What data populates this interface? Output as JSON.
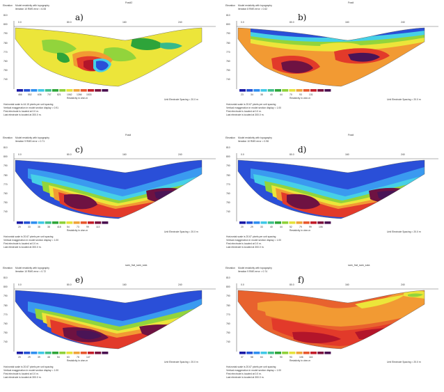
{
  "panels": [
    {
      "id": "a",
      "label": "a)",
      "title": "Fradi2",
      "elev_label": "Elevation",
      "header1": "Model resistivity with topography",
      "header2": "Iteration 10 RMS error = 6.08",
      "elev_ticks": [
        "810",
        "800",
        "790",
        "780",
        "770",
        "760",
        "750",
        "740"
      ],
      "dist_ticks": [
        "0.0",
        "80.0",
        "160",
        "240"
      ],
      "legend_values": [
        "466",
        "552",
        "636",
        "707",
        "821",
        "1062",
        "1266",
        "1533"
      ],
      "legend_title": "Resistivity in ohm.m",
      "electrode_spacing": "Unit Electrode Spacing = 20.0 m",
      "footer": [
        "Horizontal scale is 44.15 pixels per unit spacing",
        "Vertical exaggeration in model section display = 0.91",
        "First electrode is located at 0.0 m.",
        "Last electrode is located at 300.0 m."
      ]
    },
    {
      "id": "b",
      "label": "b)",
      "title": "Fradi",
      "elev_label": "Elevation",
      "header1": "Model resistivity with topography",
      "header2": "Iteration 8 RMS error = 0.62",
      "elev_ticks": [
        "810",
        "800",
        "790",
        "780",
        "770",
        "760",
        "750",
        "740"
      ],
      "dist_ticks": [
        "0.0",
        "80.0",
        "160",
        "240"
      ],
      "legend_values": [
        "23",
        "34",
        "38",
        "40",
        "44",
        "70",
        "93",
        "131"
      ],
      "legend_title": "Resistivity in ohm.m",
      "electrode_spacing": "Unit Electrode Spacing = 20.0 m",
      "footer": [
        "Horizontal scale is 20.67 pixels per unit spacing",
        "Vertical exaggeration in model section display = 1.00",
        "First electrode is located at 0.0 m.",
        "Last electrode is located at 300.0 m."
      ]
    },
    {
      "id": "c",
      "label": "c)",
      "title": "Fradi",
      "elev_label": "Elevation",
      "header1": "Model resistivity with topography",
      "header2": "Iteration 9 RMS error = 0.71",
      "elev_ticks": [
        "810",
        "800",
        "790",
        "780",
        "770",
        "760",
        "750",
        "740"
      ],
      "dist_ticks": [
        "0.0",
        "80.0",
        "160",
        "240"
      ],
      "legend_values": [
        "20",
        "33",
        "38",
        "38",
        "418",
        "54",
        "73",
        "99",
        "113"
      ],
      "legend_title": "Resistivity in ohm.m",
      "electrode_spacing": "Unit Electrode Spacing = 20.0 m",
      "footer": [
        "Horizontal scale is 20.67 pixels per unit spacing",
        "Vertical exaggeration in model section display = 1.00",
        "First electrode is located at 0.0 m.",
        "Last electrode is located at 300.0 m."
      ]
    },
    {
      "id": "d",
      "label": "d)",
      "title": "Fradi",
      "elev_label": "Elevation",
      "header1": "Model resistivity with topography",
      "header2": "Iteration 10 RMS error = 0.98",
      "elev_ticks": [
        "810",
        "800",
        "790",
        "780",
        "770",
        "760",
        "750",
        "740"
      ],
      "dist_ticks": [
        "0.0",
        "80.0",
        "160",
        "240"
      ],
      "legend_values": [
        "20",
        "29",
        "33",
        "40",
        "44",
        "52",
        "79",
        "99",
        "106"
      ],
      "legend_title": "Resistivity in ohm.m",
      "electrode_spacing": "Unit Electrode Spacing = 20.0 m",
      "footer": [
        "Horizontal scale is 20.67 pixels per unit spacing",
        "Vertical exaggeration in model section display = 1.00",
        "First electrode is located at 0.0 m.",
        "Last electrode is located at 300.0 m."
      ]
    },
    {
      "id": "e",
      "label": "e)",
      "title": "sam_frat_sam_sola",
      "elev_label": "Elevation",
      "header1": "Model resistivity with topography",
      "header2": "Iteration 10 RMS error = 0.72",
      "elev_ticks": [
        "810",
        "800",
        "790",
        "780",
        "770",
        "760",
        "750",
        "740"
      ],
      "dist_ticks": [
        "0.0",
        "80.0",
        "160",
        "240"
      ],
      "legend_values": [
        "20",
        "29",
        "39",
        "48",
        "54",
        "63",
        "78",
        "147"
      ],
      "legend_title": "Resistivity in ohm.m",
      "electrode_spacing": "Unit Electrode Spacing = 20.0 m",
      "footer": [
        "Horizontal scale is 20.67 pixels per unit spacing",
        "Vertical exaggeration in model section display = 1.00",
        "First electrode is located at 0.0 m.",
        "Last electrode is located at 300.0 m."
      ]
    },
    {
      "id": "f",
      "label": "f)",
      "title": "sam_frat_sam_sola",
      "elev_label": "Elevation",
      "header1": "Model resistivity with topography",
      "header2": "Iteration 9 RMS error = 0.74",
      "elev_ticks": [
        "810",
        "800",
        "790",
        "780",
        "770",
        "760",
        "750",
        "740"
      ],
      "dist_ticks": [
        "0.0",
        "80.0",
        "160",
        "240"
      ],
      "legend_values": [
        "37",
        "58",
        "64",
        "81",
        "90",
        "93",
        "106",
        "116"
      ],
      "legend_title": "Resistivity in ohm.m",
      "electrode_spacing": "Unit Electrode Spacing = 20.0 m",
      "footer": [
        "Horizontal scale is 20.67 pixels per unit spacing",
        "Vertical exaggeration in model section display = 1.00",
        "First electrode is located at 0.0 m.",
        "Last electrode is located at 300.0 m."
      ]
    }
  ],
  "legend_colors": [
    "#1a1aa6",
    "#2453d6",
    "#2f8ff0",
    "#3fc8e8",
    "#3fc08a",
    "#2fa63a",
    "#8fd13a",
    "#e6e23a",
    "#f0a43a",
    "#e8582e",
    "#c41e2a",
    "#7a1240",
    "#4a1050"
  ]
}
